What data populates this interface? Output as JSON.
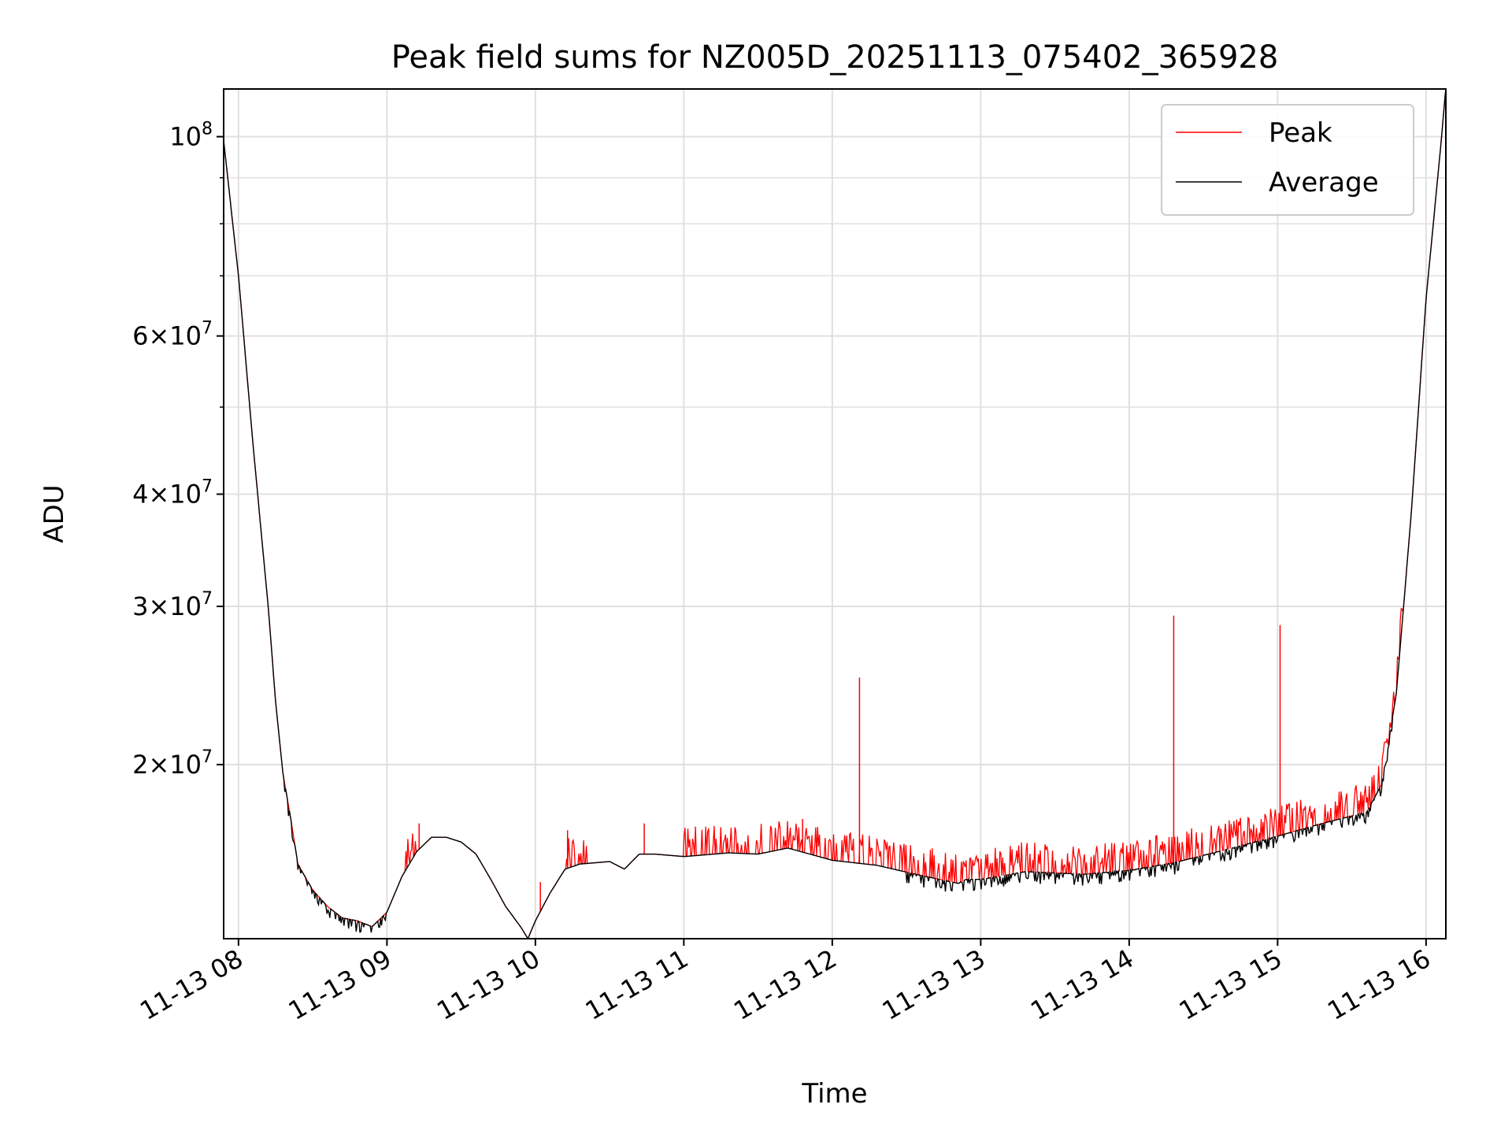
{
  "chart_data": {
    "type": "line",
    "title": "Peak field sums for NZ005D_20251113_075402_365928",
    "xlabel": "Time",
    "ylabel": "ADU",
    "yscale": "log",
    "ylim": [
      12800000,
      113000000
    ],
    "xlim": [
      "11-13 07:54",
      "11-13 16:08"
    ],
    "x_ticks": [
      "11-13 08",
      "11-13 09",
      "11-13 10",
      "11-13 11",
      "11-13 12",
      "11-13 13",
      "11-13 14",
      "11-13 15",
      "11-13 16"
    ],
    "y_major_ticks": [
      {
        "value": 20000000,
        "mant": "2",
        "exp": "7"
      },
      {
        "value": 30000000,
        "mant": "3",
        "exp": "7"
      },
      {
        "value": 40000000,
        "mant": "4",
        "exp": "7"
      },
      {
        "value": 60000000,
        "mant": "6",
        "exp": "7"
      },
      {
        "value": 100000000,
        "mant": "",
        "exp": "8"
      }
    ],
    "y_minor_ticks": [
      50000000,
      70000000,
      80000000,
      90000000
    ],
    "grid": true,
    "legend_position": "top-right",
    "colors": {
      "peak": "#ff0000",
      "average": "#000000",
      "grid": "#e0e0e0"
    },
    "average_series": {
      "name": "Average",
      "x_hours": [
        7.9,
        8.0,
        8.1,
        8.2,
        8.25,
        8.3,
        8.35,
        8.4,
        8.5,
        8.6,
        8.7,
        8.8,
        8.9,
        9.0,
        9.1,
        9.2,
        9.3,
        9.4,
        9.5,
        9.6,
        9.7,
        9.8,
        9.9,
        9.95,
        10.0,
        10.1,
        10.2,
        10.3,
        10.5,
        10.6,
        10.7,
        10.8,
        11.0,
        11.3,
        11.5,
        11.7,
        12.0,
        12.3,
        12.6,
        12.85,
        12.9,
        13.0,
        13.3,
        13.7,
        14.0,
        14.3,
        14.6,
        15.0,
        15.3,
        15.6,
        15.7,
        15.8,
        15.9,
        16.0,
        16.1,
        16.13
      ],
      "values": [
        99000000,
        70000000,
        45000000,
        30000000,
        23500000,
        19500000,
        17500000,
        15500000,
        14500000,
        13900000,
        13500000,
        13400000,
        13200000,
        13700000,
        15000000,
        16000000,
        16600000,
        16600000,
        16400000,
        15900000,
        14900000,
        13900000,
        13200000,
        12800000,
        13400000,
        14400000,
        15300000,
        15500000,
        15600000,
        15300000,
        15900000,
        15900000,
        15800000,
        15950000,
        15900000,
        16150000,
        15650000,
        15450000,
        15050000,
        14750000,
        14900000,
        14900000,
        15200000,
        15100000,
        15250000,
        15550000,
        16000000,
        16650000,
        17200000,
        17700000,
        19000000,
        24000000,
        38000000,
        66000000,
        98000000,
        112000000
      ]
    },
    "peak_series": {
      "name": "Peak",
      "notable_spikes": [
        {
          "x": "11-13 09:13",
          "value": 17200000
        },
        {
          "x": "11-13 10:02",
          "value": 14800000
        },
        {
          "x": "11-13 10:13",
          "value": 16900000
        },
        {
          "x": "11-13 10:44",
          "value": 17200000
        },
        {
          "x": "11-13 11:48",
          "value": 17400000
        },
        {
          "x": "11-13 12:11",
          "value": 25000000
        },
        {
          "x": "11-13 14:18",
          "value": 29300000
        },
        {
          "x": "11-13 15:01",
          "value": 28600000
        }
      ]
    }
  }
}
